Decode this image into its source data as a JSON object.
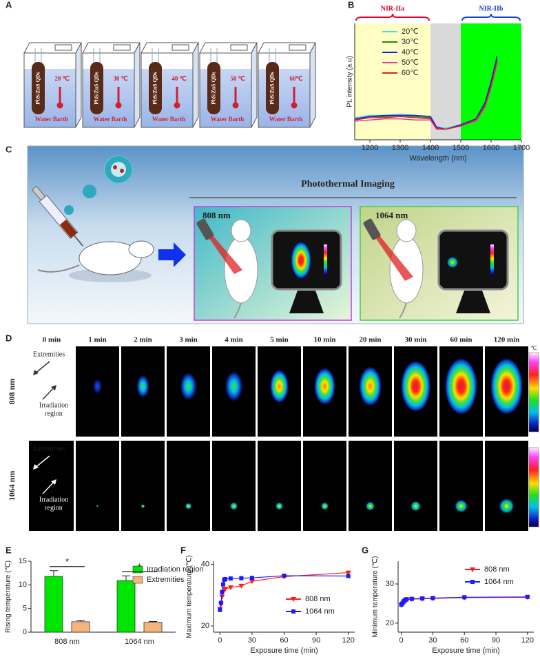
{
  "panel_labels": [
    "A",
    "B",
    "C",
    "D",
    "E",
    "F",
    "G"
  ],
  "panel_a": {
    "beakers": [
      {
        "tube": "PbS/ZnS QDs",
        "temperature": "20 ℃",
        "bath": "Water Barth"
      },
      {
        "tube": "PbS/ZnS QDs",
        "temperature": "30 ℃",
        "bath": "Water Barth"
      },
      {
        "tube": "PbS/ZnS QDs",
        "temperature": "40 ℃",
        "bath": "Water Barth"
      },
      {
        "tube": "PbS/ZnS QDs",
        "temperature": "50 ℃",
        "bath": "Water Barth"
      },
      {
        "tube": "PbS/ZnS QDs",
        "temperature": "60℃",
        "bath": "Water Barth"
      }
    ]
  },
  "panel_c": {
    "title": "Photothermal Imaging",
    "lasers": [
      "808 nm",
      "1064 nm"
    ]
  },
  "panel_d": {
    "times": [
      "0 min",
      "1 min",
      "2 min",
      "3 min",
      "4 min",
      "5 min",
      "10 min",
      "20 min",
      "30 min",
      "60 min",
      "120 min"
    ],
    "rows": [
      {
        "label": "808 nm",
        "top": "Extremities",
        "bottom": [
          "Irradiation",
          "region"
        ]
      },
      {
        "label": "1064 nm",
        "top": "Extremities",
        "bottom": [
          "Irradiation",
          "region"
        ]
      }
    ],
    "colorbar_unit": "℃"
  },
  "chart_data": [
    {
      "type": "line",
      "xlabel": "Wavelength (nm)",
      "ylabel": "PL intensity (a.u)",
      "x": [
        1150,
        1200,
        1250,
        1300,
        1350,
        1400,
        1420,
        1450,
        1500,
        1550,
        1580,
        1600,
        1620
      ],
      "xlim": [
        1150,
        1700
      ],
      "xticks": [
        1200,
        1300,
        1400,
        1500,
        1600,
        1700
      ],
      "ylim": [
        0,
        100
      ],
      "bands": [
        {
          "range": [
            1150,
            1400
          ],
          "color": "#ffffc4"
        },
        {
          "range": [
            1400,
            1500
          ],
          "color": "#d9d9d9"
        },
        {
          "range": [
            1500,
            1700
          ],
          "color": "#00ff00"
        }
      ],
      "annotations": [
        {
          "text": "NIR-IIa",
          "range": [
            1150,
            1400
          ],
          "color": "#e8002a"
        },
        {
          "text": "NIR-IIb",
          "range": [
            1500,
            1700
          ],
          "color": "#1a3cd8"
        }
      ],
      "legend": "upper left",
      "series": [
        {
          "name": "20℃",
          "color": "#40e0e0",
          "values": [
            19,
            21,
            21,
            22,
            21,
            20,
            11,
            10,
            13,
            18,
            31,
            48,
            70
          ]
        },
        {
          "name": "30℃",
          "color": "#1a8a1a",
          "values": [
            18,
            20,
            20,
            21,
            20,
            19,
            10,
            9,
            12,
            17,
            30,
            47,
            69
          ]
        },
        {
          "name": "40℃",
          "color": "#1a1ae0",
          "values": [
            18,
            20,
            21,
            21,
            21,
            20,
            11,
            9,
            13,
            18,
            32,
            50,
            72
          ]
        },
        {
          "name": "50℃",
          "color": "#e040a0",
          "values": [
            16,
            17,
            18,
            18,
            17,
            17,
            9,
            9,
            12,
            16,
            28,
            45,
            66
          ]
        },
        {
          "name": "60℃",
          "color": "#e02020",
          "values": [
            17,
            19,
            19,
            20,
            19,
            18,
            10,
            9,
            12,
            17,
            29,
            46,
            68
          ]
        }
      ]
    },
    {
      "type": "bar",
      "ylabel": "Rising temperature (℃)",
      "categories": [
        "808 nm",
        "1064 nm"
      ],
      "ylim": [
        0,
        15
      ],
      "yticks": [
        0,
        5,
        10,
        15
      ],
      "legend": "upper right",
      "series": [
        {
          "name": "Irradiation region",
          "color": "#00e600",
          "values": [
            11.8,
            10.9
          ],
          "errors": [
            1.2,
            1.0
          ]
        },
        {
          "name": "Extremities",
          "color": "#f5b57a",
          "values": [
            2.2,
            2.1
          ],
          "errors": [
            0.2,
            0.15
          ]
        }
      ],
      "significance": [
        "*",
        "*"
      ]
    },
    {
      "type": "line",
      "xlabel": "Exposure time (min)",
      "ylabel": "Maximum temperature (℃)",
      "x": [
        0,
        1,
        2,
        3,
        4,
        5,
        10,
        20,
        30,
        60,
        120
      ],
      "xlim": [
        -6,
        126
      ],
      "xticks": [
        0,
        30,
        60,
        90,
        120
      ],
      "ylim": [
        18,
        41
      ],
      "yticks": [
        20,
        40
      ],
      "legend": "lower right",
      "series": [
        {
          "name": "808 nm",
          "color": "#ff1a1a",
          "marker": "triangle-down",
          "values": [
            25.5,
            27,
            29.5,
            31,
            32,
            32,
            32.5,
            33,
            34.5,
            36,
            37.3
          ]
        },
        {
          "name": "1064 nm",
          "color": "#1a1aff",
          "marker": "square",
          "values": [
            25.2,
            27.5,
            31,
            33.5,
            35,
            35.2,
            35.4,
            35.5,
            35.6,
            36.3,
            36.2
          ]
        }
      ]
    },
    {
      "type": "line",
      "xlabel": "Exposure time (min)",
      "ylabel": "Minimum temperature (℃)",
      "x": [
        0,
        1,
        2,
        3,
        4,
        5,
        10,
        20,
        30,
        60,
        120
      ],
      "xlim": [
        -3,
        126
      ],
      "xticks": [
        0,
        30,
        60,
        90,
        120
      ],
      "ylim": [
        17.7,
        35.8
      ],
      "yticks": [
        20,
        30
      ],
      "legend": "upper right",
      "series": [
        {
          "name": "808 nm",
          "color": "#ff1a1a",
          "marker": "triangle-down",
          "values": [
            24.6,
            24.9,
            25.3,
            25.6,
            25.8,
            26,
            26.1,
            26.2,
            26.3,
            26.5,
            26.6
          ]
        },
        {
          "name": "1064 nm",
          "color": "#1a1aff",
          "marker": "square",
          "values": [
            24.7,
            25,
            25.4,
            25.7,
            25.9,
            26.1,
            26.2,
            26.3,
            26.4,
            26.6,
            26.7
          ]
        }
      ]
    }
  ]
}
